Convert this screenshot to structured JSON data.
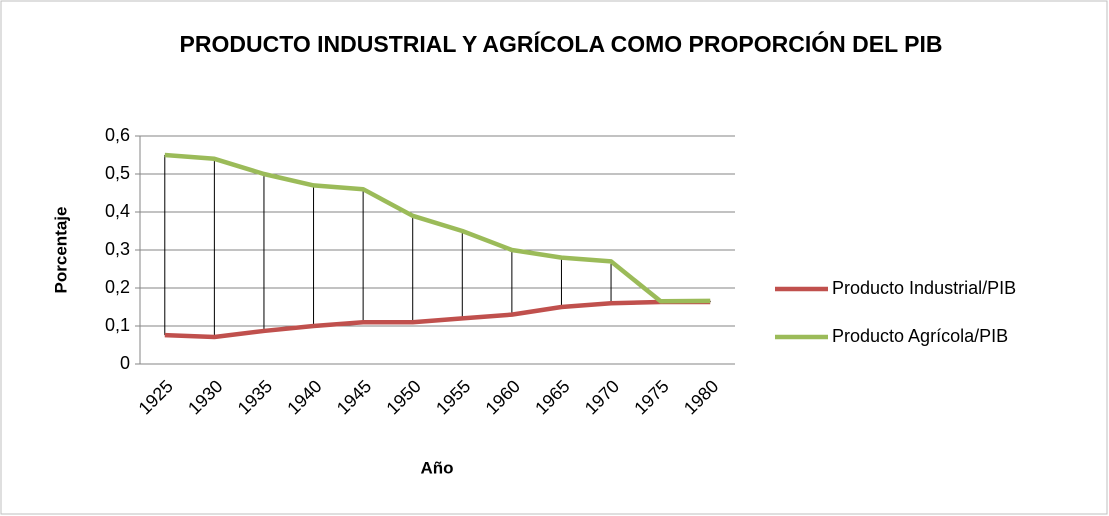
{
  "chart_data": {
    "type": "line",
    "title": "PRODUCTO INDUSTRIAL Y AGRÍCOLA COMO PROPORCIÓN DEL PIB",
    "x_label": "Año",
    "y_label": "Porcentaje",
    "categories": [
      "1925",
      "1930",
      "1935",
      "1940",
      "1945",
      "1950",
      "1955",
      "1960",
      "1965",
      "1970",
      "1975",
      "1980"
    ],
    "series": [
      {
        "name": "Producto Industrial/PIB",
        "color": "#c0504d",
        "values": [
          0.076,
          0.071,
          0.087,
          0.1,
          0.11,
          0.11,
          0.12,
          0.13,
          0.15,
          0.16,
          0.163,
          0.163
        ]
      },
      {
        "name": "Producto Agrícola/PIB",
        "color": "#9bbb59",
        "values": [
          0.55,
          0.54,
          0.5,
          0.47,
          0.46,
          0.39,
          0.35,
          0.3,
          0.28,
          0.27,
          0.165,
          0.166
        ]
      }
    ],
    "ylim": [
      0,
      0.6
    ],
    "yticks": [
      0,
      {
        "value": 0.1,
        "label": "0,1"
      },
      {
        "value": 0.2,
        "label": "0,2"
      },
      {
        "value": 0.3,
        "label": "0,3"
      },
      {
        "value": 0.4,
        "label": "0,4"
      },
      {
        "value": 0.5,
        "label": "0,5"
      },
      {
        "value": 0.6,
        "label": "0,6"
      }
    ],
    "grid": true,
    "high_low_lines": true,
    "legend": "right"
  }
}
